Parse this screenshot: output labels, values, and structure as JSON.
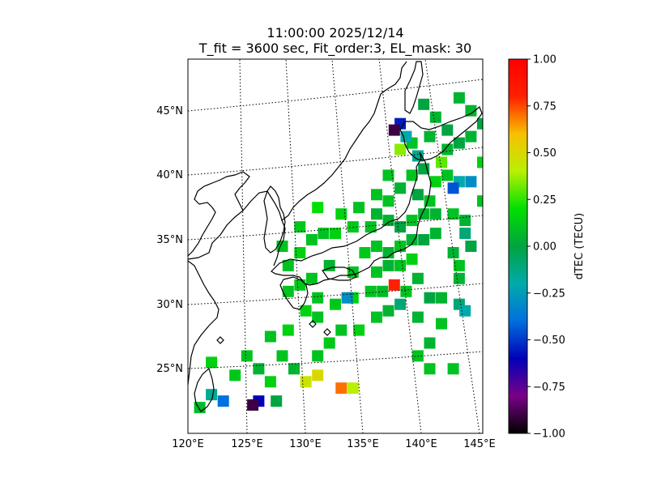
{
  "chart_data": {
    "type": "heatmap",
    "title_line1": "11:00:00 2025/12/14",
    "title_line2": "T_fit = 3600 sec, Fit_order:3, EL_mask: 30",
    "lon_ticks": [
      "120°E",
      "125°E",
      "130°E",
      "135°E",
      "140°E",
      "145°E"
    ],
    "lat_ticks": [
      "45°N",
      "40°N",
      "35°N",
      "30°N",
      "25°N"
    ],
    "lon_range": [
      120,
      145
    ],
    "lat_range": [
      20,
      49
    ],
    "meridians": [
      125,
      130,
      135,
      140,
      145
    ],
    "parallels": [
      25,
      30,
      35,
      40,
      45
    ],
    "colorbar": {
      "label": "dTEC (TECU)",
      "vmin": -1.0,
      "vmax": 1.0,
      "ticks": [
        "1.00",
        "0.75",
        "0.50",
        "0.25",
        "0.00",
        "−0.25",
        "−0.50",
        "−0.75",
        "−1.00"
      ],
      "colormap": "nipy_spectral"
    },
    "cells": [
      [
        121,
        22,
        0.08
      ],
      [
        122,
        23,
        -0.15
      ],
      [
        123,
        22.5,
        -0.4
      ],
      [
        122,
        25.5,
        0.15
      ],
      [
        124,
        24.5,
        0.12
      ],
      [
        125,
        26,
        0.1
      ],
      [
        126,
        25,
        0.05
      ],
      [
        127,
        24,
        0.15
      ],
      [
        126,
        22.5,
        -0.6
      ],
      [
        125.5,
        22.2,
        -0.9
      ],
      [
        127.5,
        22.5,
        0.0
      ],
      [
        128,
        26,
        0.1
      ],
      [
        129,
        25,
        0.05
      ],
      [
        127,
        27.5,
        0.1
      ],
      [
        128.5,
        28,
        0.15
      ],
      [
        130,
        24,
        0.45
      ],
      [
        131,
        24.5,
        0.5
      ],
      [
        133,
        23.5,
        0.7
      ],
      [
        134,
        23.5,
        0.4
      ],
      [
        131,
        26,
        0.1
      ],
      [
        132,
        27,
        0.12
      ],
      [
        133,
        28,
        0.1
      ],
      [
        134.5,
        28,
        0.15
      ],
      [
        131,
        29,
        0.1
      ],
      [
        132.5,
        30,
        0.12
      ],
      [
        134,
        30.5,
        0.15
      ],
      [
        135.5,
        31,
        0.1
      ],
      [
        136.5,
        31,
        0.08
      ],
      [
        137.5,
        31.5,
        0.8
      ],
      [
        138.5,
        31,
        0.1
      ],
      [
        139.5,
        32,
        0.05
      ],
      [
        140.5,
        30.5,
        0.0
      ],
      [
        141.5,
        30.5,
        0.05
      ],
      [
        143,
        30,
        -0.1
      ],
      [
        143.5,
        29.5,
        -0.2
      ],
      [
        139.5,
        29,
        0.05
      ],
      [
        141.5,
        28.5,
        0.1
      ],
      [
        140.5,
        27,
        0.05
      ],
      [
        139.5,
        26,
        0.1
      ],
      [
        140.5,
        25,
        0.1
      ],
      [
        142.5,
        25,
        0.1
      ],
      [
        133.5,
        30.5,
        -0.3
      ],
      [
        128.5,
        31,
        0.1
      ],
      [
        128.5,
        33,
        0.1
      ],
      [
        129.5,
        34,
        0.15
      ],
      [
        130.5,
        35,
        0.1
      ],
      [
        131.5,
        35.5,
        0.1
      ],
      [
        132.5,
        35.5,
        0.15
      ],
      [
        134,
        36,
        0.12
      ],
      [
        135.5,
        36,
        0.1
      ],
      [
        137,
        36.5,
        0.05
      ],
      [
        138,
        36,
        0.0
      ],
      [
        139,
        36.5,
        0.1
      ],
      [
        140,
        37,
        0.05
      ],
      [
        140.5,
        38,
        0.1
      ],
      [
        139.5,
        38.5,
        0.0
      ],
      [
        141,
        39.5,
        0.15
      ],
      [
        142,
        40,
        0.1
      ],
      [
        143,
        39.5,
        -0.2
      ],
      [
        144,
        39.5,
        -0.3
      ],
      [
        142.5,
        39,
        -0.45
      ],
      [
        141.5,
        41,
        0.3
      ],
      [
        142,
        42,
        0.05
      ],
      [
        143,
        42.5,
        0.0
      ],
      [
        144,
        43,
        0.05
      ],
      [
        145,
        44,
        0.0
      ],
      [
        142,
        43.5,
        0.0
      ],
      [
        140.5,
        43,
        0.05
      ],
      [
        139,
        42.5,
        0.1
      ],
      [
        138,
        42,
        0.35
      ],
      [
        139.5,
        41.5,
        -0.15
      ],
      [
        138,
        44,
        -0.55
      ],
      [
        137.5,
        43.5,
        -0.9
      ],
      [
        138.5,
        43,
        -0.2
      ],
      [
        137,
        40,
        0.1
      ],
      [
        136,
        38.5,
        0.1
      ],
      [
        138,
        39,
        0.05
      ],
      [
        139,
        40,
        0.1
      ],
      [
        140,
        40.5,
        0.0
      ],
      [
        141,
        37,
        0.05
      ],
      [
        142.5,
        37,
        0.1
      ],
      [
        143.5,
        36.5,
        0.05
      ],
      [
        143.5,
        35.5,
        -0.1
      ],
      [
        142.5,
        34,
        0.05
      ],
      [
        143,
        33,
        0.1
      ],
      [
        143,
        32,
        0.05
      ],
      [
        144,
        34.5,
        0.0
      ],
      [
        145,
        38,
        0.1
      ],
      [
        145,
        41,
        0.15
      ],
      [
        144,
        45,
        0.05
      ],
      [
        143,
        46,
        0.05
      ],
      [
        140,
        45.5,
        0.0
      ],
      [
        141,
        44.5,
        0.05
      ],
      [
        135,
        34,
        0.12
      ],
      [
        136,
        34.5,
        0.1
      ],
      [
        137,
        34,
        0.05
      ],
      [
        138,
        34.5,
        0.1
      ],
      [
        139,
        35,
        0.05
      ],
      [
        140,
        35,
        0.0
      ],
      [
        141,
        35.5,
        0.05
      ],
      [
        136,
        32.5,
        0.1
      ],
      [
        137,
        33,
        0.05
      ],
      [
        138,
        33,
        0.1
      ],
      [
        139,
        33.5,
        0.15
      ],
      [
        134,
        32.5,
        0.1
      ],
      [
        132,
        33,
        0.05
      ],
      [
        130.5,
        32,
        0.1
      ],
      [
        129.5,
        31.5,
        0.12
      ],
      [
        131,
        30.5,
        0.1
      ],
      [
        130,
        29.5,
        0.15
      ],
      [
        137,
        29.5,
        0.05
      ],
      [
        136,
        29,
        0.1
      ],
      [
        138,
        30,
        -0.1
      ],
      [
        137,
        38,
        0.1
      ],
      [
        133,
        37,
        0.15
      ],
      [
        131,
        37.5,
        0.2
      ],
      [
        128,
        34.5,
        0.1
      ],
      [
        129.5,
        36,
        0.12
      ],
      [
        134.5,
        37.5,
        0.1
      ],
      [
        136,
        37,
        0.05
      ]
    ]
  }
}
